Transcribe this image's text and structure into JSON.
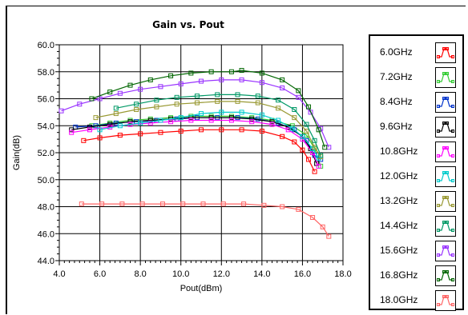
{
  "chart_data": {
    "type": "line",
    "title": "Gain vs. Pout",
    "xlabel": "Pout(dBm)",
    "ylabel": "Gain(dB)",
    "xlim": [
      4.0,
      18.0
    ],
    "ylim": [
      44.0,
      60.0
    ],
    "x_ticks": [
      "4.0",
      "6.0",
      "8.0",
      "10.0",
      "12.0",
      "14.0",
      "16.0",
      "18.0"
    ],
    "y_ticks": [
      "44.0",
      "46.0",
      "48.0",
      "50.0",
      "52.0",
      "54.0",
      "56.0",
      "58.0",
      "60.0"
    ],
    "grid": true,
    "legend_position": "right",
    "series": [
      {
        "name": "6.0GHz",
        "color": "#ff0000",
        "points": [
          [
            5.2,
            52.9
          ],
          [
            6.0,
            53.1
          ],
          [
            7.0,
            53.3
          ],
          [
            8.0,
            53.4
          ],
          [
            9.0,
            53.5
          ],
          [
            10.0,
            53.6
          ],
          [
            11.0,
            53.7
          ],
          [
            12.0,
            53.7
          ],
          [
            13.0,
            53.7
          ],
          [
            14.0,
            53.6
          ],
          [
            15.0,
            53.2
          ],
          [
            15.6,
            52.8
          ],
          [
            16.0,
            52.2
          ],
          [
            16.3,
            51.5
          ],
          [
            16.6,
            50.6
          ]
        ]
      },
      {
        "name": "7.2GHz",
        "color": "#33cc33",
        "points": [
          [
            5.6,
            54.0
          ],
          [
            6.5,
            54.2
          ],
          [
            7.5,
            54.4
          ],
          [
            8.5,
            54.5
          ],
          [
            9.5,
            54.6
          ],
          [
            10.5,
            54.7
          ],
          [
            11.5,
            54.7
          ],
          [
            12.5,
            54.7
          ],
          [
            13.5,
            54.6
          ],
          [
            14.5,
            54.4
          ],
          [
            15.5,
            54.0
          ],
          [
            16.2,
            53.3
          ],
          [
            16.6,
            52.3
          ],
          [
            16.9,
            51.0
          ]
        ]
      },
      {
        "name": "8.4GHz",
        "color": "#0033cc",
        "points": [
          [
            4.8,
            53.9
          ],
          [
            5.8,
            54.0
          ],
          [
            6.8,
            54.2
          ],
          [
            7.8,
            54.3
          ],
          [
            8.8,
            54.4
          ],
          [
            9.8,
            54.5
          ],
          [
            10.8,
            54.6
          ],
          [
            11.8,
            54.6
          ],
          [
            12.8,
            54.6
          ],
          [
            13.8,
            54.5
          ],
          [
            14.8,
            54.2
          ],
          [
            15.6,
            53.7
          ],
          [
            16.2,
            52.9
          ],
          [
            16.6,
            51.8
          ],
          [
            16.9,
            51.5
          ]
        ]
      },
      {
        "name": "9.6GHz",
        "color": "#000000",
        "points": [
          [
            4.6,
            53.7
          ],
          [
            5.5,
            53.9
          ],
          [
            6.5,
            54.1
          ],
          [
            7.5,
            54.3
          ],
          [
            8.5,
            54.4
          ],
          [
            9.5,
            54.5
          ],
          [
            10.5,
            54.6
          ],
          [
            11.5,
            54.6
          ],
          [
            12.5,
            54.6
          ],
          [
            13.5,
            54.5
          ],
          [
            14.5,
            54.3
          ],
          [
            15.3,
            53.9
          ],
          [
            16.0,
            53.2
          ],
          [
            16.4,
            52.3
          ],
          [
            16.7,
            51.2
          ]
        ]
      },
      {
        "name": "10.8GHz",
        "color": "#ff00ff",
        "points": [
          [
            4.6,
            53.5
          ],
          [
            5.5,
            53.7
          ],
          [
            6.5,
            53.9
          ],
          [
            7.5,
            54.1
          ],
          [
            8.5,
            54.2
          ],
          [
            9.5,
            54.3
          ],
          [
            10.5,
            54.4
          ],
          [
            11.5,
            54.4
          ],
          [
            12.5,
            54.4
          ],
          [
            13.5,
            54.3
          ],
          [
            14.5,
            54.1
          ],
          [
            15.3,
            53.7
          ],
          [
            16.0,
            53.0
          ],
          [
            16.5,
            52.0
          ],
          [
            16.8,
            51.0
          ]
        ]
      },
      {
        "name": "12.0GHz",
        "color": "#00cccc",
        "points": [
          [
            6.0,
            53.7
          ],
          [
            7.0,
            54.0
          ],
          [
            8.0,
            54.2
          ],
          [
            9.0,
            54.4
          ],
          [
            10.0,
            54.6
          ],
          [
            11.0,
            54.9
          ],
          [
            12.0,
            55.0
          ],
          [
            13.0,
            55.0
          ],
          [
            14.0,
            54.8
          ],
          [
            14.8,
            54.4
          ],
          [
            15.5,
            53.8
          ],
          [
            16.0,
            53.2
          ],
          [
            16.5,
            52.3
          ],
          [
            16.8,
            51.6
          ]
        ]
      },
      {
        "name": "13.2GHz",
        "color": "#999933",
        "points": [
          [
            5.8,
            54.6
          ],
          [
            6.8,
            54.9
          ],
          [
            7.8,
            55.2
          ],
          [
            8.8,
            55.4
          ],
          [
            9.8,
            55.6
          ],
          [
            10.8,
            55.7
          ],
          [
            11.8,
            55.8
          ],
          [
            12.8,
            55.8
          ],
          [
            13.8,
            55.7
          ],
          [
            14.8,
            55.3
          ],
          [
            15.6,
            54.6
          ],
          [
            16.2,
            53.6
          ],
          [
            16.6,
            52.4
          ],
          [
            16.9,
            51.7
          ]
        ]
      },
      {
        "name": "14.4GHz",
        "color": "#009966",
        "points": [
          [
            6.8,
            55.3
          ],
          [
            7.8,
            55.6
          ],
          [
            8.8,
            55.9
          ],
          [
            9.8,
            56.1
          ],
          [
            10.8,
            56.2
          ],
          [
            11.8,
            56.3
          ],
          [
            12.8,
            56.3
          ],
          [
            13.8,
            56.2
          ],
          [
            14.8,
            55.9
          ],
          [
            15.6,
            55.2
          ],
          [
            16.2,
            54.1
          ],
          [
            16.6,
            52.9
          ],
          [
            16.9,
            51.8
          ]
        ]
      },
      {
        "name": "15.6GHz",
        "color": "#9933ff",
        "points": [
          [
            4.1,
            55.1
          ],
          [
            5.0,
            55.6
          ],
          [
            6.0,
            56.0
          ],
          [
            7.0,
            56.4
          ],
          [
            8.0,
            56.7
          ],
          [
            9.0,
            56.9
          ],
          [
            10.0,
            57.1
          ],
          [
            11.0,
            57.3
          ],
          [
            12.0,
            57.4
          ],
          [
            13.0,
            57.4
          ],
          [
            14.0,
            57.2
          ],
          [
            15.0,
            56.8
          ],
          [
            15.8,
            56.1
          ],
          [
            16.4,
            55.0
          ],
          [
            16.9,
            53.8
          ],
          [
            17.3,
            52.4
          ]
        ]
      },
      {
        "name": "16.8GHz",
        "color": "#006600",
        "points": [
          [
            5.6,
            56.0
          ],
          [
            6.5,
            56.5
          ],
          [
            7.5,
            57.0
          ],
          [
            8.5,
            57.4
          ],
          [
            9.5,
            57.7
          ],
          [
            10.5,
            57.9
          ],
          [
            11.5,
            58.0
          ],
          [
            12.5,
            58.0
          ],
          [
            13.0,
            58.1
          ],
          [
            14.0,
            57.9
          ],
          [
            15.0,
            57.4
          ],
          [
            15.8,
            56.6
          ],
          [
            16.3,
            55.4
          ],
          [
            16.8,
            53.7
          ],
          [
            17.1,
            52.4
          ]
        ]
      },
      {
        "name": "18.0GHz",
        "color": "#ff6666",
        "points": [
          [
            5.1,
            48.2
          ],
          [
            6.1,
            48.2
          ],
          [
            7.1,
            48.2
          ],
          [
            8.1,
            48.2
          ],
          [
            9.1,
            48.2
          ],
          [
            10.1,
            48.2
          ],
          [
            11.1,
            48.2
          ],
          [
            12.1,
            48.2
          ],
          [
            13.1,
            48.2
          ],
          [
            14.1,
            48.1
          ],
          [
            15.0,
            48.0
          ],
          [
            15.8,
            47.8
          ],
          [
            16.5,
            47.2
          ],
          [
            17.0,
            46.5
          ],
          [
            17.3,
            45.8
          ]
        ]
      }
    ]
  }
}
